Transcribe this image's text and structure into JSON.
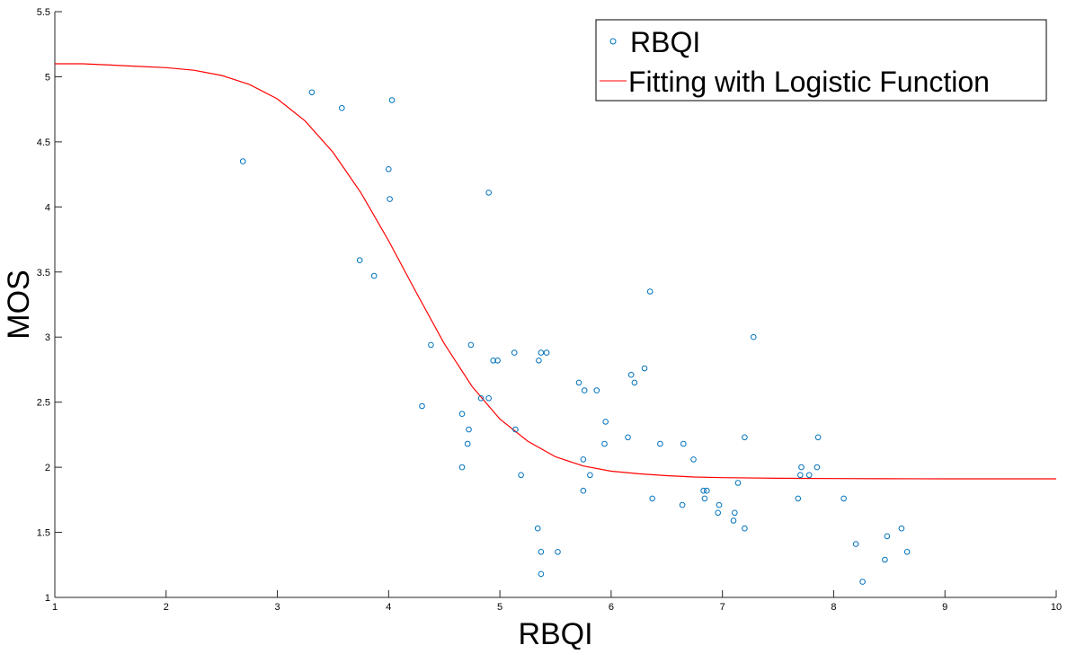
{
  "chart_data": {
    "type": "scatter",
    "title": "",
    "xlabel": "RBQI",
    "ylabel": "MOS",
    "xlim": [
      1,
      10
    ],
    "ylim": [
      1,
      5.5
    ],
    "xticks": [
      "1",
      "2",
      "3",
      "4",
      "5",
      "6",
      "7",
      "8",
      "9",
      "10"
    ],
    "yticks": [
      "1",
      "1.5",
      "2",
      "2.5",
      "3",
      "3.5",
      "4",
      "4.5",
      "5",
      "5.5"
    ],
    "grid": false,
    "legend_position": "top-right",
    "colors": {
      "points": "#0072BD",
      "fit": "#FF0000"
    },
    "series": [
      {
        "name": "RBQI",
        "kind": "scatter",
        "points": [
          [
            2.69,
            4.35
          ],
          [
            3.31,
            4.88
          ],
          [
            3.58,
            4.76
          ],
          [
            4.0,
            4.29
          ],
          [
            4.03,
            4.82
          ],
          [
            4.01,
            4.06
          ],
          [
            3.74,
            3.59
          ],
          [
            3.87,
            3.47
          ],
          [
            4.9,
            4.11
          ],
          [
            4.38,
            2.94
          ],
          [
            4.74,
            2.94
          ],
          [
            4.3,
            2.47
          ],
          [
            4.66,
            2.41
          ],
          [
            4.72,
            2.29
          ],
          [
            4.71,
            2.18
          ],
          [
            4.66,
            2.0
          ],
          [
            4.83,
            2.53
          ],
          [
            4.9,
            2.53
          ],
          [
            4.94,
            2.82
          ],
          [
            4.98,
            2.82
          ],
          [
            5.13,
            2.88
          ],
          [
            5.35,
            2.82
          ],
          [
            5.37,
            2.88
          ],
          [
            5.42,
            2.88
          ],
          [
            5.14,
            2.29
          ],
          [
            5.19,
            1.94
          ],
          [
            5.34,
            1.53
          ],
          [
            5.37,
            1.35
          ],
          [
            5.37,
            1.18
          ],
          [
            5.52,
            1.35
          ],
          [
            5.71,
            2.65
          ],
          [
            5.76,
            2.59
          ],
          [
            5.87,
            2.59
          ],
          [
            5.95,
            2.35
          ],
          [
            5.94,
            2.18
          ],
          [
            5.75,
            2.06
          ],
          [
            5.81,
            1.94
          ],
          [
            5.75,
            1.82
          ],
          [
            6.15,
            2.23
          ],
          [
            6.18,
            2.71
          ],
          [
            6.21,
            2.65
          ],
          [
            6.3,
            2.76
          ],
          [
            6.35,
            3.35
          ],
          [
            6.44,
            2.18
          ],
          [
            6.37,
            1.76
          ],
          [
            6.64,
            1.71
          ],
          [
            6.65,
            2.18
          ],
          [
            6.74,
            2.06
          ],
          [
            6.83,
            1.82
          ],
          [
            6.86,
            1.82
          ],
          [
            6.84,
            1.76
          ],
          [
            6.97,
            1.71
          ],
          [
            6.96,
            1.65
          ],
          [
            7.11,
            1.65
          ],
          [
            7.1,
            1.59
          ],
          [
            7.14,
            1.88
          ],
          [
            7.2,
            2.23
          ],
          [
            7.2,
            1.53
          ],
          [
            7.28,
            3.0
          ],
          [
            7.68,
            1.76
          ],
          [
            7.71,
            2.0
          ],
          [
            7.7,
            1.94
          ],
          [
            7.78,
            1.94
          ],
          [
            7.85,
            2.0
          ],
          [
            7.86,
            2.23
          ],
          [
            8.09,
            1.76
          ],
          [
            8.2,
            1.41
          ],
          [
            8.26,
            1.12
          ],
          [
            8.46,
            1.29
          ],
          [
            8.48,
            1.47
          ],
          [
            8.61,
            1.53
          ],
          [
            8.66,
            1.35
          ]
        ]
      },
      {
        "name": "Fitting with Logistic Function",
        "kind": "line",
        "points": [
          [
            1.0,
            5.1
          ],
          [
            1.25,
            5.1
          ],
          [
            1.5,
            5.09
          ],
          [
            1.75,
            5.08
          ],
          [
            2.0,
            5.07
          ],
          [
            2.25,
            5.05
          ],
          [
            2.5,
            5.01
          ],
          [
            2.75,
            4.94
          ],
          [
            3.0,
            4.83
          ],
          [
            3.25,
            4.66
          ],
          [
            3.5,
            4.42
          ],
          [
            3.75,
            4.11
          ],
          [
            4.0,
            3.74
          ],
          [
            4.25,
            3.34
          ],
          [
            4.5,
            2.95
          ],
          [
            4.75,
            2.62
          ],
          [
            5.0,
            2.37
          ],
          [
            5.25,
            2.2
          ],
          [
            5.5,
            2.08
          ],
          [
            5.75,
            2.01
          ],
          [
            6.0,
            1.97
          ],
          [
            6.25,
            1.95
          ],
          [
            6.5,
            1.935
          ],
          [
            6.75,
            1.925
          ],
          [
            7.0,
            1.92
          ],
          [
            7.5,
            1.915
          ],
          [
            8.0,
            1.913
          ],
          [
            8.5,
            1.912
          ],
          [
            9.0,
            1.911
          ],
          [
            9.5,
            1.911
          ],
          [
            10.0,
            1.911
          ]
        ]
      }
    ]
  }
}
